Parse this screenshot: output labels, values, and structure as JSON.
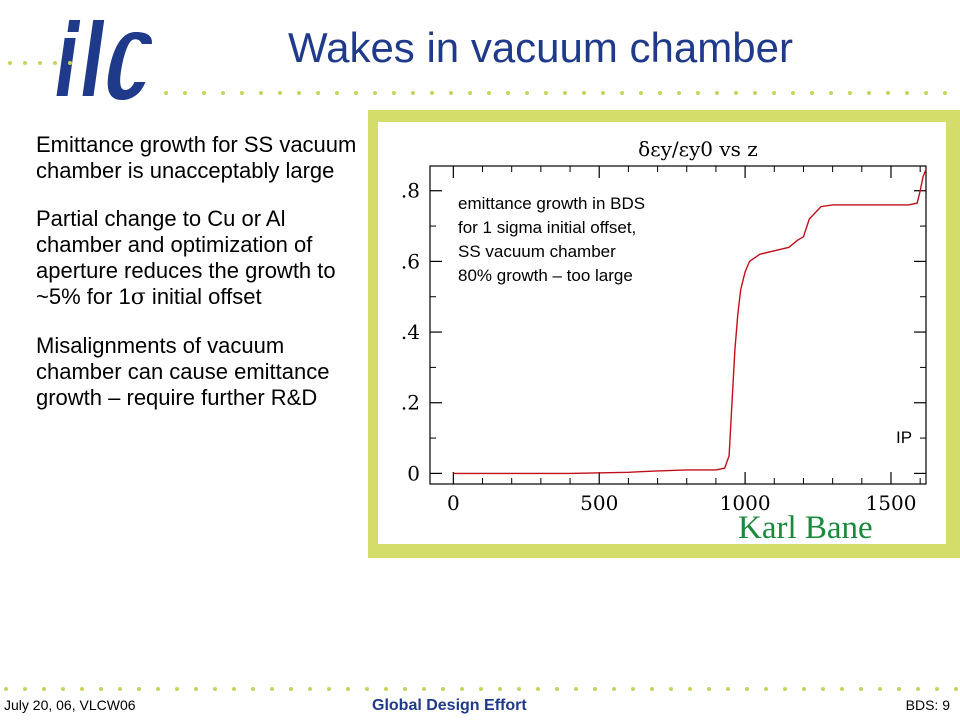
{
  "title": "Wakes in vacuum chamber",
  "logo": {
    "text": "ilc"
  },
  "body": {
    "p1": "Emittance growth for SS vacuum chamber is unacceptably large",
    "p2_before": "Partial change to Cu or Al chamber and optimization of aperture reduces the growth to ~5% for 1",
    "p2_symbol": "σ",
    "p2_after": " initial offset",
    "p3": "Misalignments of vacuum chamber can cause emittance growth – require further R&D"
  },
  "chart_data": {
    "type": "line",
    "title": "δεy/εy0 vs z",
    "xlim": [
      -80,
      1620
    ],
    "ylim": [
      -0.03,
      0.87
    ],
    "x_ticks": [
      "0",
      "500",
      "1000",
      "1500"
    ],
    "x_tick_values": [
      0,
      500,
      1000,
      1500
    ],
    "y_ticks": [
      "0",
      ".2",
      ".4",
      ".6",
      ".8"
    ],
    "y_tick_values": [
      0,
      0.2,
      0.4,
      0.6,
      0.8
    ],
    "series": [
      {
        "color": "#c0101a",
        "x": [
          0,
          200,
          400,
          600,
          700,
          800,
          900,
          930,
          945,
          955,
          965,
          975,
          985,
          1000,
          1015,
          1050,
          1100,
          1150,
          1180,
          1200,
          1220,
          1260,
          1300,
          1400,
          1500,
          1560,
          1590,
          1600,
          1605,
          1610,
          1615,
          1620
        ],
        "y": [
          0.0,
          0.0,
          0.0,
          0.003,
          0.007,
          0.01,
          0.01,
          0.015,
          0.05,
          0.2,
          0.35,
          0.45,
          0.52,
          0.57,
          0.6,
          0.62,
          0.63,
          0.64,
          0.66,
          0.67,
          0.72,
          0.755,
          0.76,
          0.76,
          0.76,
          0.76,
          0.765,
          0.8,
          0.82,
          0.84,
          0.85,
          0.86
        ]
      }
    ],
    "annotations": [
      "emittance growth in BDS",
      "for 1 sigma initial offset,",
      "SS vacuum chamber",
      "80% growth – too large"
    ],
    "ip_label": "IP"
  },
  "credit": "Karl Bane",
  "footer": {
    "left": "July 20, 06, VLCW06",
    "center": "Global Design Effort",
    "right": "BDS: 9"
  },
  "colors": {
    "title": "#1f3a8a",
    "frame": "#d4dd6a",
    "dots": "#c9d25a",
    "curve": "#c0101a",
    "credit": "#1a8a3a"
  }
}
